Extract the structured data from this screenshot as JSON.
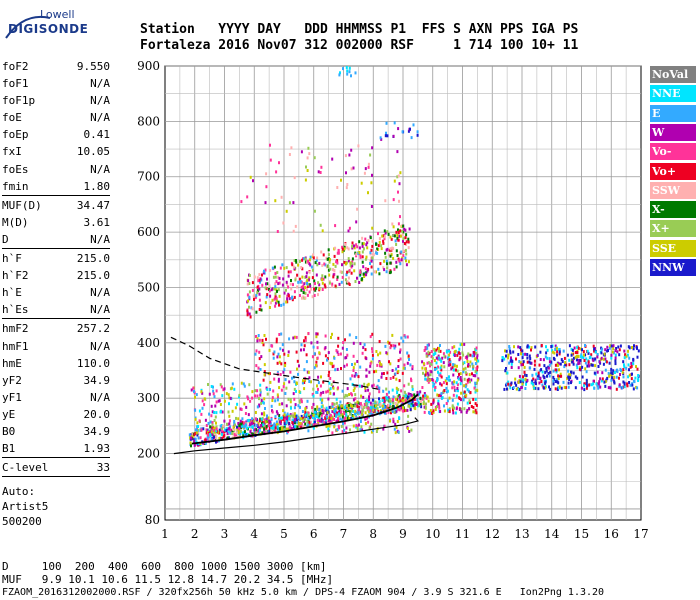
{
  "logo": {
    "line1": "Lowell",
    "line2": "DIGISONDE"
  },
  "header": {
    "row1": "Station   YYYY DAY   DDD HHMMSS P1  FFS S AXN PPS IGA PS",
    "row2": "Fortaleza 2016 Nov07 312 002000 RSF     1 714 100 10+ 11"
  },
  "params": {
    "group1": [
      {
        "k": "foF2",
        "v": "9.550"
      },
      {
        "k": "foF1",
        "v": "N/A"
      },
      {
        "k": "foF1p",
        "v": "N/A"
      },
      {
        "k": "foE",
        "v": "N/A"
      },
      {
        "k": "foEp",
        "v": "0.41"
      },
      {
        "k": "fxI",
        "v": "10.05"
      },
      {
        "k": "foEs",
        "v": "N/A"
      },
      {
        "k": "fmin",
        "v": "1.80"
      }
    ],
    "group2": [
      {
        "k": "MUF(D)",
        "v": "34.47"
      },
      {
        "k": "M(D)",
        "v": "3.61"
      },
      {
        "k": "D",
        "v": "N/A"
      }
    ],
    "group3": [
      {
        "k": "h`F",
        "v": "215.0"
      },
      {
        "k": "h`F2",
        "v": "215.0"
      },
      {
        "k": "h`E",
        "v": "N/A"
      },
      {
        "k": "h`Es",
        "v": "N/A"
      }
    ],
    "group4": [
      {
        "k": "hmF2",
        "v": "257.2"
      },
      {
        "k": "hmF1",
        "v": "N/A"
      },
      {
        "k": "hmE",
        "v": "110.0"
      },
      {
        "k": "yF2",
        "v": "34.9"
      },
      {
        "k": "yF1",
        "v": "N/A"
      },
      {
        "k": "yE",
        "v": "20.0"
      },
      {
        "k": "B0",
        "v": "34.9"
      },
      {
        "k": "B1",
        "v": "1.93"
      }
    ],
    "group5": [
      {
        "k": "C-level",
        "v": "33"
      }
    ],
    "auto": [
      "Auto:",
      "Artist5",
      "500200"
    ]
  },
  "legend": [
    {
      "label": "NoVal",
      "bg": "#808080",
      "fg": "#ffffff"
    },
    {
      "label": "NNE",
      "bg": "#00e5ff",
      "fg": "#ffffff"
    },
    {
      "label": "E",
      "bg": "#33aaff",
      "fg": "#ffffff"
    },
    {
      "label": "W",
      "bg": "#b000b0",
      "fg": "#ffffff"
    },
    {
      "label": "Vo-",
      "bg": "#ff3399",
      "fg": "#ffffff"
    },
    {
      "label": "Vo+",
      "bg": "#ee0022",
      "fg": "#ffffff"
    },
    {
      "label": "SSW",
      "bg": "#ffb0b0",
      "fg": "#ffffff"
    },
    {
      "label": "X-",
      "bg": "#007a00",
      "fg": "#ffffff"
    },
    {
      "label": "X+",
      "bg": "#99cc55",
      "fg": "#ffffff"
    },
    {
      "label": "SSE",
      "bg": "#cccc00",
      "fg": "#ffffff"
    },
    {
      "label": "NNW",
      "bg": "#1a1acc",
      "fg": "#ffffff"
    }
  ],
  "bottom": {
    "d_row": "D     100  200  400  600  800 1000 1500 3000 [km]",
    "muf_row": "MUF   9.9 10.1 10.6 11.5 12.8 14.7 20.2 34.5 [MHz]",
    "file_row": "FZAOM_2016312002000.RSF / 320fx256h 50 kHz 5.0 km / DPS-4 FZAOM 904 / 3.9 S 321.6 E   Ion2Png 1.3.20"
  },
  "chart_data": {
    "type": "scatter",
    "title": "",
    "xlabel": "",
    "ylabel": "",
    "xlim": [
      1,
      17
    ],
    "ylim": [
      80,
      900
    ],
    "x_ticks": [
      1,
      2,
      3,
      4,
      5,
      6,
      7,
      8,
      9,
      10,
      11,
      12,
      13,
      14,
      15,
      16,
      17
    ],
    "y_ticks": [
      200,
      300,
      400,
      500,
      600,
      700,
      800,
      900
    ],
    "y_tick_labels": [
      "200",
      "300",
      "400",
      "500",
      "600",
      "700",
      "800",
      "900"
    ],
    "y_bottom_label": "80",
    "grid": true,
    "legend_position": "right",
    "traces": [
      {
        "name": "main_echo_trace",
        "color": "#000000",
        "x": [
          1.9,
          3.0,
          4.0,
          5.0,
          6.0,
          7.0,
          8.0,
          8.8,
          9.3,
          9.5
        ],
        "y": [
          218,
          225,
          233,
          240,
          249,
          258,
          269,
          283,
          297,
          307
        ]
      },
      {
        "name": "lower_profile",
        "color": "#000000",
        "x": [
          1.3,
          2.0,
          3.0,
          4.0,
          5.0,
          6.0,
          7.0,
          8.0,
          9.0,
          9.5,
          9.4
        ],
        "y": [
          200,
          205,
          210,
          215,
          221,
          229,
          236,
          244,
          252,
          259,
          265
        ]
      },
      {
        "name": "upper_profile",
        "color": "#000000",
        "dashed": true,
        "x": [
          1.2,
          1.8,
          2.5,
          3.5,
          4.5,
          5.5,
          6.5,
          7.5,
          8.3
        ],
        "y": [
          410,
          395,
          372,
          353,
          345,
          337,
          330,
          323,
          315
        ]
      }
    ],
    "clusters": [
      {
        "x": [
          1.8,
          9.6
        ],
        "y": [
          212,
          300
        ],
        "n": 900,
        "colors": [
          "#ee0022",
          "#ff3399",
          "#b000b0",
          "#33aaff",
          "#00e5ff",
          "#99cc55",
          "#ffb0b0",
          "#cccc00",
          "#007a00",
          "#1a1acc"
        ]
      },
      {
        "x": [
          1.8,
          9.3
        ],
        "y": [
          240,
          330
        ],
        "n": 500,
        "colors": [
          "#33aaff",
          "#00e5ff",
          "#b000b0",
          "#ff3399",
          "#99cc55",
          "#cccc00"
        ]
      },
      {
        "x": [
          3.7,
          9.2
        ],
        "y": [
          445,
          620
        ],
        "n": 520,
        "slope": true,
        "colors": [
          "#ee0022",
          "#ff3399",
          "#b000b0",
          "#ffb0b0",
          "#99cc55",
          "#cccc00",
          "#33aaff",
          "#007a00"
        ]
      },
      {
        "x": [
          4.0,
          9.3
        ],
        "y": [
          330,
          420
        ],
        "n": 260,
        "colors": [
          "#b000b0",
          "#ff3399",
          "#ee0022",
          "#33aaff",
          "#cccc00"
        ]
      },
      {
        "x": [
          9.6,
          11.5
        ],
        "y": [
          275,
          400
        ],
        "n": 360,
        "colors": [
          "#ee0022",
          "#ff3399",
          "#00e5ff",
          "#33aaff",
          "#b000b0",
          "#cccc00",
          "#99cc55"
        ]
      },
      {
        "x": [
          12.3,
          16.9
        ],
        "y": [
          318,
          398
        ],
        "n": 520,
        "colors": [
          "#1a1acc",
          "#1a1acc",
          "#1a1acc",
          "#33aaff",
          "#b000b0",
          "#ee0022",
          "#cccc00",
          "#00e5ff"
        ]
      },
      {
        "x": [
          3.5,
          9.0
        ],
        "y": [
          600,
          760
        ],
        "n": 80,
        "colors": [
          "#cccc00",
          "#ff3399",
          "#99cc55",
          "#ffb0b0",
          "#b000b0"
        ]
      },
      {
        "x": [
          8.0,
          9.6
        ],
        "y": [
          770,
          800
        ],
        "n": 20,
        "colors": [
          "#1a1acc",
          "#33aaff",
          "#b000b0"
        ]
      },
      {
        "x": [
          6.8,
          7.4
        ],
        "y": [
          885,
          900
        ],
        "n": 10,
        "colors": [
          "#00e5ff",
          "#33aaff"
        ]
      }
    ]
  }
}
